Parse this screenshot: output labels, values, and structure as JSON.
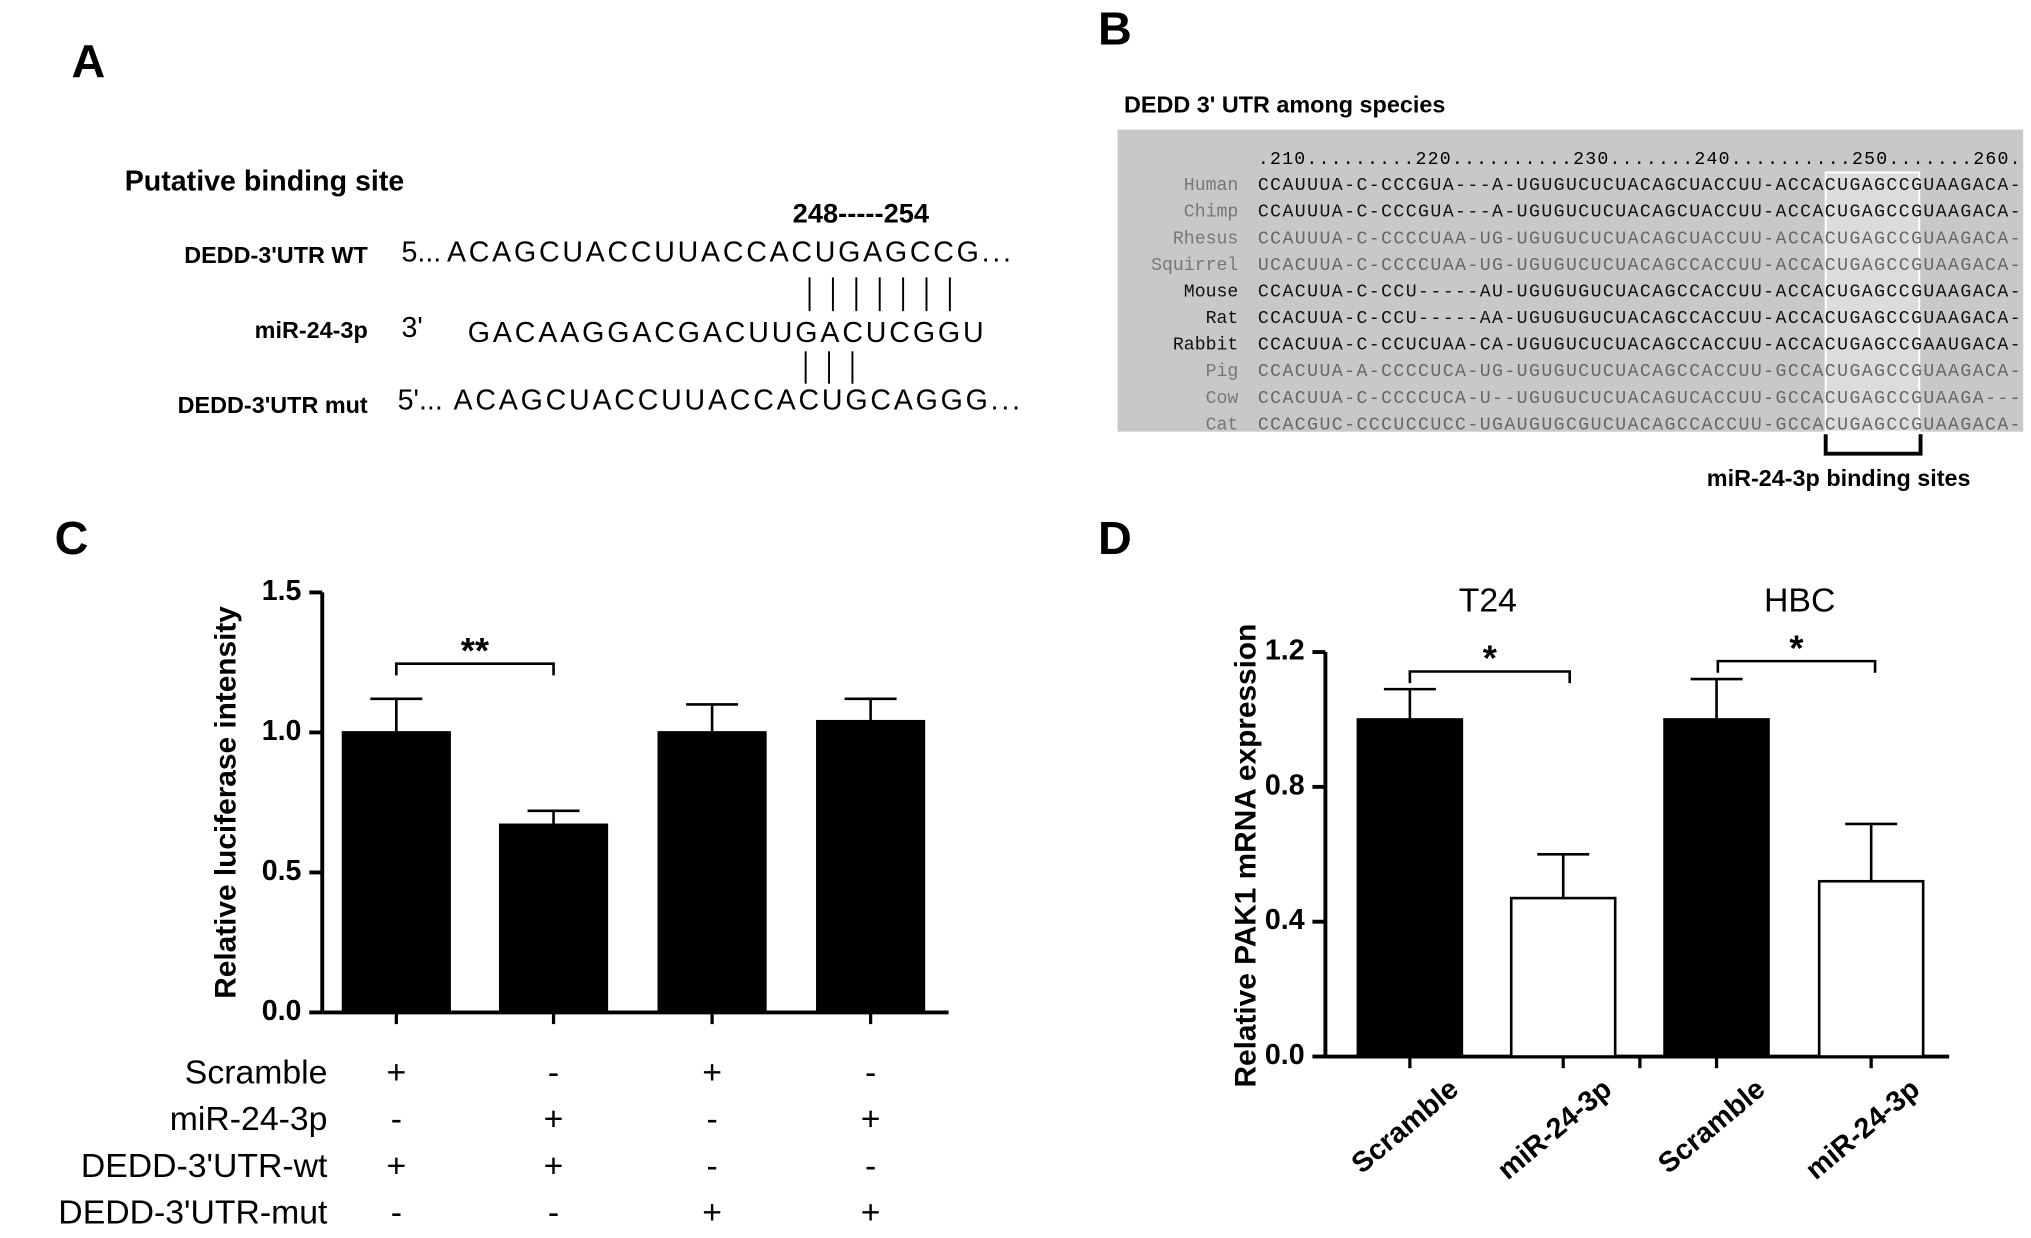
{
  "panel_a": {
    "label": "A",
    "title": "Putative binding site",
    "position": "248-----254",
    "rows": [
      {
        "label": "DEDD-3'UTR WT",
        "end": "5...",
        "sequence": "ACAGCUACCUUACCACUGAGCCG..."
      },
      {
        "label": "miR-24-3p",
        "end": "3'",
        "sequence": "GACAAGGACGACUUGACUCGGU"
      },
      {
        "label": "DEDD-3'UTR mut",
        "end": "5'...",
        "sequence": "ACAGCUACCUUACCACUGCAGGG..."
      }
    ]
  },
  "panel_b": {
    "label": "B",
    "title": "DEDD 3' UTR among species",
    "ruler": ".210.........220..........230.......240..........250.......260.",
    "species": [
      {
        "name": "Human",
        "sequence": "CCAUUUA-C-CCCGUA---A-UGUGUCUCUACAGCUACCUU-ACCACUGAGCCGUAAGACA-"
      },
      {
        "name": "Chimp",
        "sequence": "CCAUUUA-C-CCCGUA---A-UGUGUCUCUACAGCUACCUU-ACCACUGAGCCGUAAGACA-"
      },
      {
        "name": "Rhesus",
        "sequence": "CCAUUUA-C-CCCCUAA-UG-UGUGUCUCUACAGCUACCUU-ACCACUGAGCCGUAAGACA-"
      },
      {
        "name": "Squirrel",
        "sequence": "UCACUUA-C-CCCCUAA-UG-UGUGUCUCUACAGCCACCUU-ACCACUGAGCCGUAAGACA-"
      },
      {
        "name": "Mouse",
        "sequence": "CCACUUA-C-CCU-----AU-UGUGUGUCUACAGCCACCUU-ACCACUGAGCCGUAAGACA-"
      },
      {
        "name": "Rat",
        "sequence": "CCACUUA-C-CCU-----AA-UGUGUGUCUACAGCCACCUU-ACCACUGAGCCGUAAGACA-"
      },
      {
        "name": "Rabbit",
        "sequence": "CCACUUA-C-CCUCUAA-CA-UGUGUCUCUACAGCCACCUU-ACCACUGAGCCGAAUGACA-"
      },
      {
        "name": "Pig",
        "sequence": "CCACUUA-A-CCCCUCA-UG-UGUGUCUCUACAGCCACCUU-GCCACUGAGCCGUAAGACA-"
      },
      {
        "name": "Cow",
        "sequence": "CCACUUA-C-CCCCUCA-U--UGUGUCUCUACAGUCACCUU-GCCACUGAGCCGUAAGA---"
      },
      {
        "name": "Cat",
        "sequence": "CCACGUC-CCCUCCUCC-UGAUGUGCGUCUACAGCCACCUU-GCCACUGAGCCGUAAGACA-"
      }
    ],
    "caption": "miR-24-3p binding sites"
  },
  "chart_data": [
    {
      "type": "bar",
      "panel": "C",
      "ylabel": "Relative luciferase intensity",
      "values": [
        1.0,
        0.67,
        1.0,
        1.04
      ],
      "errors": [
        0.12,
        0.05,
        0.1,
        0.08
      ],
      "color": "#000000",
      "ylim": [
        0,
        1.5
      ],
      "yticks": [
        {
          "value": 0,
          "label": "0.0"
        },
        {
          "value": 0.5,
          "label": "0.5"
        },
        {
          "value": 1,
          "label": "1.0"
        },
        {
          "value": 1.5,
          "label": "1.5"
        }
      ],
      "annotations": [
        "**"
      ],
      "conditions": [
        {
          "label": "Scramble",
          "signs": [
            "+",
            "-",
            "+",
            "-"
          ]
        },
        {
          "label": "miR-24-3p",
          "signs": [
            "-",
            "+",
            "-",
            "+"
          ]
        },
        {
          "label": "DEDD-3'UTR-wt",
          "signs": [
            "+",
            "+",
            "-",
            "-"
          ]
        },
        {
          "label": "DEDD-3'UTR-mut",
          "signs": [
            "-",
            "-",
            "+",
            "+"
          ]
        }
      ]
    },
    {
      "type": "bar",
      "panel": "D",
      "ylabel": "Relative PAK1 mRNA expression",
      "groups": [
        "T24",
        "HBC"
      ],
      "categories": [
        "Scramble",
        "miR-24-3p",
        "Scramble",
        "miR-24-3p"
      ],
      "values": [
        1.0,
        0.47,
        1.0,
        0.52
      ],
      "errors": [
        0.09,
        0.13,
        0.12,
        0.17
      ],
      "colors": [
        "#000000",
        "#ffffff",
        "#000000",
        "#ffffff"
      ],
      "ylim": [
        0,
        1.2
      ],
      "yticks": [
        {
          "value": 0,
          "label": "0.0"
        },
        {
          "value": 0.4,
          "label": "0.4"
        },
        {
          "value": 0.8,
          "label": "0.8"
        },
        {
          "value": 1.2,
          "label": "1.2"
        }
      ],
      "annotations": [
        "*",
        "*"
      ]
    }
  ]
}
